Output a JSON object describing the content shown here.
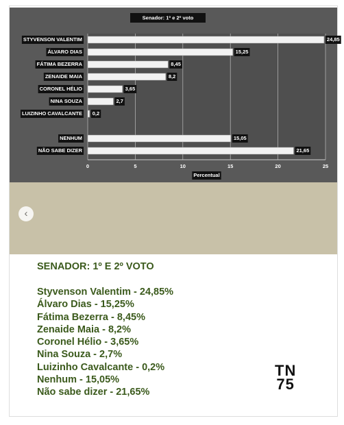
{
  "chart_data": {
    "type": "hbar",
    "title": "Senador: 1º e 2º voto",
    "categories": [
      "STYVENSON VALENTIM",
      "ÁLVARO DIAS",
      "FÁTIMA BEZERRA",
      "ZENAIDE MAIA",
      "CORONEL HÉLIO",
      "NINA SOUZA",
      "LUIZINHO CAVALCANTE",
      null,
      "NENHUM",
      "NÃO SABE DIZER"
    ],
    "values": [
      24.85,
      15.25,
      8.45,
      8.2,
      3.65,
      2.7,
      0.2,
      null,
      15.05,
      21.65
    ],
    "value_labels": [
      "24,85",
      "15,25",
      "8,45",
      "8,2",
      "3,65",
      "2,7",
      "0,2",
      null,
      "15,05",
      "21,65"
    ],
    "color": "#f2f2f2",
    "xlabel": "Percentual",
    "xlim": [
      0,
      25
    ],
    "xticks": [
      0,
      5,
      10,
      15,
      20,
      25
    ],
    "grid": true
  },
  "post": {
    "heading": "SENADOR: 1º E 2º VOTO",
    "lines": [
      "Styvenson Valentim - 24,85%",
      "Álvaro Dias - 15,25%",
      "Fátima Bezerra - 8,45%",
      "Zenaide Maia - 8,2%",
      "Coronel Hélio - 3,65%",
      "Nina Souza - 2,7%",
      "Luizinho Cavalcante - 0,2%",
      "Nenhum - 15,05%",
      "Não sabe dizer - 21,65%"
    ],
    "logo_top": "TN",
    "logo_bottom": "75"
  }
}
